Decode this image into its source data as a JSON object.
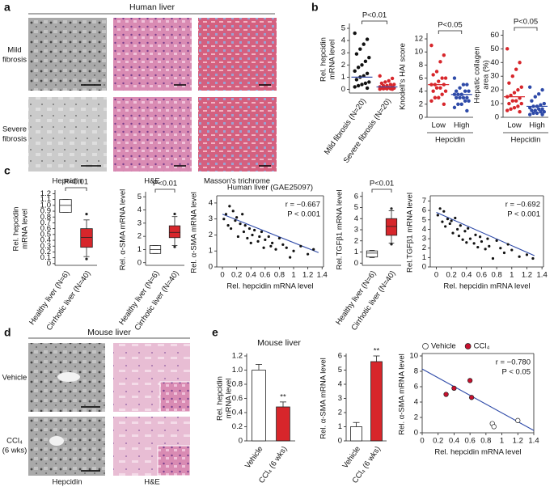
{
  "panel_labels": [
    "a",
    "b",
    "c",
    "d",
    "e"
  ],
  "panel_a": {
    "title": "Human liver",
    "rows": [
      [
        "Mild",
        "fibrosis"
      ],
      [
        "Severe",
        "fibrosis"
      ]
    ],
    "columns": [
      "Hepcidin",
      "H&E",
      "Masson's trichrome"
    ]
  },
  "panel_d": {
    "title": "Mouse liver",
    "rows": [
      [
        "Vehicle"
      ],
      [
        "CCl₄",
        "(6 wks)"
      ]
    ],
    "columns": [
      "Hepcidin",
      "H&E"
    ]
  },
  "panel_e": {
    "title": "Mouse liver"
  },
  "chart_data": [
    {
      "type": "strip",
      "ylabel": [
        "Rel. hepcidin",
        "mRNA level"
      ],
      "categories": [
        "Mild fibrosis (N=20)",
        "Severe fibrosis (N=20)"
      ],
      "annotation": "P<0.01",
      "groups": [
        {
          "color": "#111111",
          "mean_color": "#3a4fa8",
          "values": [
            4.6,
            4.1,
            3.7,
            3.3,
            2.9,
            2.6,
            2.3,
            2.0,
            1.8,
            1.5,
            1.3,
            1.1,
            1.0,
            0.8,
            0.6,
            0.5,
            0.4,
            0.3,
            0.2,
            0.1
          ],
          "mean": 1.0
        },
        {
          "color": "#d7262b",
          "mean_color": "#3a4fa8",
          "values": [
            1.1,
            0.9,
            0.7,
            0.6,
            0.5,
            0.4,
            0.4,
            0.3,
            0.3,
            0.2,
            0.2,
            0.15,
            0.1,
            0.1,
            0.1,
            0.05,
            0.05,
            0.05,
            0.02,
            0.02
          ],
          "mean": 0.2
        }
      ],
      "ylim": [
        -0.3,
        5.2
      ],
      "yticks": [
        0,
        1,
        2,
        3,
        4,
        5
      ]
    },
    {
      "type": "strip",
      "ylabel": [
        "Knodell's HAI score"
      ],
      "xlabel": "Hepcidin",
      "categories": [
        "Low",
        "High"
      ],
      "annotation": "P<0.05",
      "groups": [
        {
          "color": "#d7262b",
          "mean_color": "#d7262b",
          "values": [
            11,
            9.5,
            8.5,
            7,
            6.5,
            6,
            6,
            5.5,
            5,
            5,
            5,
            4.5,
            4.5,
            4,
            4,
            3.5,
            3,
            3,
            2.5,
            2
          ],
          "mean": 5
        },
        {
          "color": "#2e4aa8",
          "mean_color": "#2e4aa8",
          "values": [
            6,
            5,
            5,
            4.5,
            4,
            4,
            4,
            3.5,
            3.5,
            3.5,
            3,
            3,
            3,
            3,
            2.5,
            2.5,
            2,
            2,
            1.5,
            1
          ],
          "mean": 3.5
        }
      ],
      "ylim": [
        0,
        12.5
      ],
      "yticks": [
        0,
        2,
        4,
        6,
        8,
        10,
        12
      ]
    },
    {
      "type": "strip",
      "ylabel": [
        "Hepatic collagen",
        "area (%)"
      ],
      "xlabel": "Hepcidin",
      "categories": [
        "Low",
        "High"
      ],
      "annotation": "P<0.05",
      "groups": [
        {
          "color": "#d7262b",
          "mean_color": "#d7262b",
          "values": [
            50,
            40,
            35,
            30,
            25,
            22,
            20,
            18,
            16,
            15,
            14,
            12,
            12,
            10,
            10,
            8,
            7,
            6,
            5,
            4
          ],
          "mean": 15
        },
        {
          "color": "#2e4aa8",
          "mean_color": "#2e4aa8",
          "values": [
            22,
            20,
            17,
            15,
            12,
            10,
            9,
            8,
            8,
            7,
            6,
            6,
            5,
            5,
            4,
            4,
            3,
            3,
            2,
            2
          ],
          "mean": 8
        }
      ],
      "ylim": [
        0,
        62
      ],
      "yticks": [
        0,
        10,
        20,
        30,
        40,
        50,
        60
      ]
    },
    {
      "type": "box",
      "ylabel": [
        "Rel. hepcidin",
        "mRNA level"
      ],
      "categories": [
        "Healthy liver (N=6)",
        "Cirrhotic liver (N=40)"
      ],
      "annotation": "P<0.01",
      "boxes": [
        {
          "color": "#ffffff",
          "stats": [
            0.88,
            0.88,
            1.0,
            1.1,
            1.1
          ],
          "outliers": []
        },
        {
          "color": "#d7262b",
          "stats": [
            0.12,
            0.28,
            0.45,
            0.6,
            0.75
          ],
          "outliers": [
            0.08,
            0.85
          ]
        }
      ],
      "ylim": [
        -0.03,
        1.22
      ],
      "yticks": [
        0,
        0.1,
        0.2,
        0.3,
        0.4,
        0.5,
        0.6,
        0.7,
        0.8,
        0.9,
        {
          "value": 1,
          "label": "1.0"
        },
        1.1,
        1.2
      ]
    },
    {
      "type": "box",
      "ylabel": [
        "Rel. α-SMA mRNA level"
      ],
      "categories": [
        "Healthy liver (N=6)",
        "Cirrhotic liver (N=40)"
      ],
      "annotation": "P<0.01",
      "boxes": [
        {
          "color": "#ffffff",
          "stats": [
            0.7,
            0.7,
            1.0,
            1.3,
            1.3
          ],
          "outliers": []
        },
        {
          "color": "#d7262b",
          "stats": [
            1.3,
            1.9,
            2.3,
            2.8,
            3.5
          ],
          "outliers": [
            1.2,
            3.7
          ]
        }
      ],
      "ylim": [
        -0.2,
        5.2
      ],
      "yticks": [
        0,
        1,
        2,
        3,
        4,
        5
      ]
    },
    {
      "type": "scatter",
      "title": "Human liver (GAE25097)",
      "ylabel": [
        "Rel. α-SMA mRNA level"
      ],
      "xlabel": "Rel. hepcidin mRNA level",
      "r_label": "r = −0.667",
      "p_label": "P < 0.001",
      "series": [
        {
          "color": "#111111",
          "x": [
            0.02,
            0.05,
            0.08,
            0.1,
            0.12,
            0.15,
            0.18,
            0.2,
            0.22,
            0.25,
            0.28,
            0.3,
            0.32,
            0.35,
            0.38,
            0.4,
            0.42,
            0.45,
            0.5,
            0.52,
            0.55,
            0.58,
            0.6,
            0.65,
            0.68,
            0.7,
            0.75,
            0.8,
            0.85,
            0.9,
            0.95,
            1.0,
            1.1,
            1.2,
            1.28
          ],
          "y": [
            3.0,
            3.3,
            2.6,
            3.8,
            2.4,
            3.5,
            2.9,
            3.1,
            1.9,
            2.7,
            3.3,
            2.2,
            2.6,
            1.8,
            2.4,
            1.5,
            2.0,
            2.3,
            1.6,
            1.9,
            2.2,
            1.2,
            1.7,
            1.9,
            1.3,
            1.5,
            1.1,
            1.8,
            1.4,
            1.2,
            0.6,
            1.0,
            1.3,
            0.8,
            1.1
          ]
        }
      ],
      "fit": {
        "color": "#2e4aa8",
        "x": [
          0,
          1.35
        ],
        "y": [
          3.3,
          0.9
        ]
      },
      "xlim": [
        -0.08,
        1.42
      ],
      "xticks": [
        0,
        0.2,
        0.4,
        0.6,
        0.8,
        1,
        1.2,
        1.4
      ],
      "ylim": [
        0,
        4.3
      ],
      "yticks": [
        0,
        1,
        2,
        3,
        4
      ]
    },
    {
      "type": "box",
      "ylabel": [
        "Rel.TGFβ1 mRNA level"
      ],
      "categories": [
        "Healthy liver (N=6)",
        "Cirrhotic liver (N=40)"
      ],
      "annotation": "P<0.01",
      "boxes": [
        {
          "color": "#ffffff",
          "stats": [
            0.5,
            0.55,
            0.9,
            1.1,
            1.15
          ],
          "outliers": []
        },
        {
          "color": "#d7262b",
          "stats": [
            1.8,
            2.5,
            3.3,
            4.0,
            4.7
          ],
          "outliers": [
            1.7,
            4.9
          ]
        }
      ],
      "ylim": [
        -0.2,
        6.2
      ],
      "yticks": [
        0,
        1,
        2,
        3,
        4,
        5,
        6
      ]
    },
    {
      "type": "scatter",
      "ylabel": [
        "Rel.TGFβ1 mRNA level"
      ],
      "xlabel": "Rel. hepcidin mRNA level",
      "r_label": "r = −0.692",
      "p_label": "P < 0.001",
      "series": [
        {
          "color": "#111111",
          "x": [
            0.02,
            0.05,
            0.08,
            0.1,
            0.12,
            0.15,
            0.18,
            0.2,
            0.22,
            0.25,
            0.28,
            0.3,
            0.32,
            0.35,
            0.38,
            0.4,
            0.42,
            0.45,
            0.5,
            0.52,
            0.55,
            0.58,
            0.6,
            0.65,
            0.68,
            0.7,
            0.75,
            0.8,
            0.85,
            0.9,
            0.95,
            1.0,
            1.1,
            1.2,
            1.28
          ],
          "y": [
            5.5,
            6.2,
            4.8,
            5.9,
            4.3,
            5.1,
            4.6,
            4.9,
            3.6,
            5.2,
            4.0,
            3.3,
            4.4,
            2.9,
            3.8,
            2.6,
            4.1,
            3.0,
            2.5,
            3.4,
            2.1,
            3.2,
            2.7,
            1.9,
            3.0,
            2.2,
            0.9,
            2.8,
            2.0,
            1.5,
            2.4,
            1.8,
            1.1,
            1.3,
            0.9
          ]
        }
      ],
      "fit": {
        "color": "#2e4aa8",
        "x": [
          0,
          1.3
        ],
        "y": [
          5.8,
          1.2
        ]
      },
      "xlim": [
        -0.08,
        1.42
      ],
      "xticks": [
        0,
        0.2,
        0.4,
        0.6,
        0.8,
        1,
        1.2,
        1.4
      ],
      "ylim": [
        0,
        7.3
      ],
      "yticks": [
        0,
        1,
        2,
        3,
        4,
        5,
        6,
        7
      ]
    },
    {
      "type": "bar",
      "ylabel": [
        "Rel. hepcidin",
        "mRNA level"
      ],
      "categories": [
        "Vehicle",
        "CCl₄ (6 wks)"
      ],
      "values": [
        1.0,
        0.48
      ],
      "errors": [
        0.08,
        0.07
      ],
      "colors": [
        "#ffffff",
        "#d7262b"
      ],
      "annotation": "**",
      "ylim": [
        0,
        1.2
      ],
      "yticks": [
        0,
        0.2,
        0.4,
        0.6,
        0.8,
        {
          "value": 1,
          "label": "1.0"
        },
        1.2
      ]
    },
    {
      "type": "bar",
      "ylabel": [
        "Rel. α-SMA mRNA level"
      ],
      "categories": [
        "Vehicle",
        "CCl₄ (6 wks)"
      ],
      "values": [
        1.0,
        5.6
      ],
      "errors": [
        0.3,
        0.4
      ],
      "colors": [
        "#ffffff",
        "#d7262b"
      ],
      "annotation": "**",
      "ylim": [
        0,
        6
      ],
      "yticks": [
        0,
        1,
        2,
        3,
        4,
        5,
        6
      ]
    },
    {
      "type": "scatter",
      "ylabel": [
        "Rel. α-SMA mRNA level"
      ],
      "xlabel": "Rel. hepcidin mRNA level",
      "r_label": "r = −0.780",
      "p_label": "P < 0.05",
      "series": [
        {
          "name": "Vehicle",
          "color": "#ffffff",
          "x": [
            0.88,
            0.9,
            1.2
          ],
          "y": [
            1.2,
            0.8,
            1.6
          ]
        },
        {
          "name": "CCl₄",
          "color": "#c8102e",
          "x": [
            0.3,
            0.4,
            0.6,
            0.62
          ],
          "y": [
            5.0,
            5.8,
            6.8,
            4.6
          ]
        }
      ],
      "fit": {
        "color": "#2e4aa8",
        "x": [
          0,
          1.4
        ],
        "y": [
          8.3,
          0.3
        ]
      },
      "xlim": [
        0,
        1.4
      ],
      "xticks": [
        0,
        0.2,
        0.4,
        0.6,
        0.8,
        1,
        1.2,
        1.4
      ],
      "ylim": [
        0,
        10
      ],
      "yticks": [
        0,
        2,
        4,
        6,
        8,
        10
      ]
    }
  ]
}
